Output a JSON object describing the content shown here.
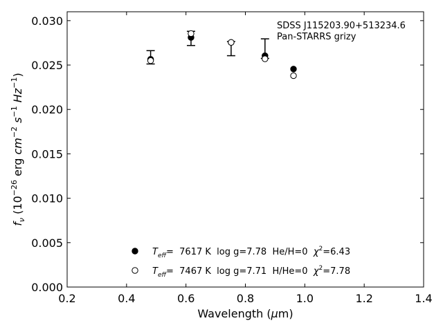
{
  "chart_data": {
    "type": "scatter",
    "title": "",
    "xlabel": {
      "main": "Wavelength (",
      "mu": "μ",
      "unit": "m)"
    },
    "ylabel": {
      "f": "f",
      "nu": "ν",
      "open": " (10",
      "exp1": "−26",
      "erg": " erg ",
      "cm": "cm",
      "exp2": "−2",
      "s": "s",
      "exp3": "−1",
      "hz": "Hz",
      "exp4": "−1",
      "close": ")"
    },
    "xlim": [
      0.2,
      1.4
    ],
    "ylim": [
      0.0,
      0.031
    ],
    "xticks": [
      0.2,
      0.4,
      0.6,
      0.8,
      1.0,
      1.2,
      1.4
    ],
    "xtick_labels": [
      "0.2",
      "0.4",
      "0.6",
      "0.8",
      "1.0",
      "1.2",
      "1.4"
    ],
    "yticks": [
      0.0,
      0.005,
      0.01,
      0.015,
      0.02,
      0.025,
      0.03
    ],
    "ytick_labels": [
      "0.000",
      "0.005",
      "0.010",
      "0.015",
      "0.020",
      "0.025",
      "0.030"
    ],
    "grid": false,
    "annotation": {
      "line1": "SDSS J115203.90+513234.6",
      "line2": "Pan-STARRS grizy"
    },
    "observed": {
      "x": [
        0.481,
        0.617,
        0.752,
        0.866,
        0.962
      ],
      "y": [
        0.02587,
        0.028,
        0.02685,
        0.02685,
        null
      ],
      "yerr": [
        0.00075,
        0.0008,
        0.0008,
        0.0011,
        null
      ]
    },
    "series": [
      {
        "marker": "filled",
        "x": [
          0.481,
          0.617,
          0.752,
          0.866,
          0.962
        ],
        "y": [
          0.02565,
          0.0281,
          0.02755,
          0.02605,
          0.02455
        ]
      },
      {
        "marker": "open",
        "x": [
          0.481,
          0.617,
          0.752,
          0.866,
          0.962
        ],
        "y": [
          0.0255,
          0.02855,
          0.02755,
          0.0257,
          0.0238
        ]
      }
    ],
    "legend": {
      "placement": "lower-center",
      "entries": [
        {
          "marker": "filled",
          "teff_label": "T",
          "teff_sub": "eff",
          "rest": "=  7617 K  log g=7.78  He/H=0  ",
          "chi": "χ",
          "chi_exp": "2",
          "chi_val": "=6.43"
        },
        {
          "marker": "open",
          "teff_label": "T",
          "teff_sub": "eff",
          "rest": "=  7467 K  log g=7.71  H/He=0  ",
          "chi": "χ",
          "chi_exp": "2",
          "chi_val": "=7.78"
        }
      ]
    }
  }
}
